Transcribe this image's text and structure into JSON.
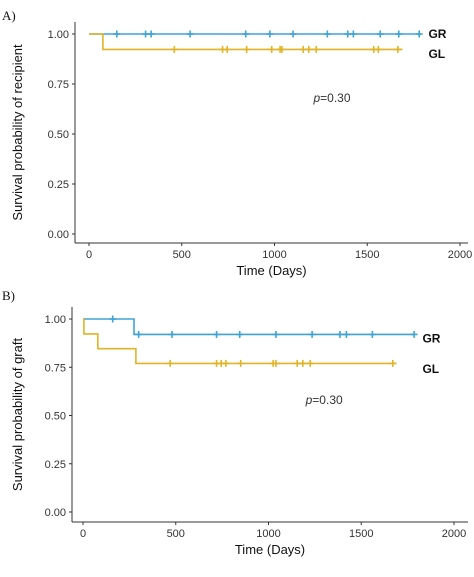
{
  "chart_data": [
    {
      "type": "line",
      "panel_label": "A)",
      "ylabel": "Survival probability of recipient",
      "xlabel": "Time (Days)",
      "xlim": [
        0,
        2000
      ],
      "ylim": [
        0,
        1
      ],
      "x_ticks": [
        0,
        500,
        1000,
        1500,
        2000
      ],
      "y_ticks": [
        0.0,
        0.25,
        0.5,
        0.75,
        1.0
      ],
      "y_tick_labels": [
        "0.00",
        "0.25",
        "0.50",
        "0.75",
        "1.00"
      ],
      "annotation": {
        "prefix": "p",
        "text": "=0.30",
        "x": 1310,
        "y": 0.66
      },
      "grid": false,
      "series": [
        {
          "name": "GR",
          "color": "#3fa3d5",
          "steps": [
            [
              0,
              1.0
            ],
            [
              1790,
              1.0
            ]
          ],
          "censor_x": [
            150,
            305,
            335,
            545,
            845,
            975,
            1100,
            1285,
            1395,
            1425,
            1570,
            1670,
            1780
          ],
          "label_x": 1830,
          "label_y": 1.0
        },
        {
          "name": "GL",
          "color": "#e0b426",
          "steps": [
            [
              0,
              1.0
            ],
            [
              75,
              1.0
            ],
            [
              75,
              0.923
            ],
            [
              1690,
              0.923
            ]
          ],
          "censor_x": [
            460,
            720,
            745,
            850,
            985,
            1030,
            1040,
            1155,
            1185,
            1225,
            1535,
            1560,
            1665
          ],
          "label_x": 1830,
          "label_y": 0.9
        }
      ]
    },
    {
      "type": "line",
      "panel_label": "B)",
      "ylabel": "Survival probability of graft",
      "xlabel": "Time (Days)",
      "xlim": [
        0,
        2000
      ],
      "ylim": [
        0,
        1
      ],
      "x_ticks": [
        0,
        500,
        1000,
        1500,
        2000
      ],
      "y_ticks": [
        0.0,
        0.25,
        0.5,
        0.75,
        1.0
      ],
      "y_tick_labels": [
        "0.00",
        "0.25",
        "0.50",
        "0.75",
        "1.00"
      ],
      "annotation": {
        "prefix": "p",
        "text": "=0.30",
        "x": 1300,
        "y": 0.56
      },
      "grid": false,
      "series": [
        {
          "name": "GR",
          "color": "#3fa3d5",
          "steps": [
            [
              0,
              1.0
            ],
            [
              275,
              1.0
            ],
            [
              275,
              0.92
            ],
            [
              1790,
              0.92
            ]
          ],
          "censor_x": [
            160,
            300,
            480,
            720,
            845,
            1040,
            1235,
            1385,
            1420,
            1560,
            1785
          ],
          "label_x": 1830,
          "label_y": 0.9
        },
        {
          "name": "GL",
          "color": "#e0b426",
          "steps": [
            [
              0,
              1.0
            ],
            [
              5,
              1.0
            ],
            [
              5,
              0.923
            ],
            [
              80,
              0.923
            ],
            [
              80,
              0.846
            ],
            [
              285,
              0.846
            ],
            [
              285,
              0.77
            ],
            [
              1690,
              0.77
            ]
          ],
          "censor_x": [
            470,
            720,
            745,
            770,
            850,
            1025,
            1040,
            1155,
            1185,
            1225,
            1670
          ],
          "label_x": 1830,
          "label_y": 0.74
        }
      ]
    }
  ]
}
